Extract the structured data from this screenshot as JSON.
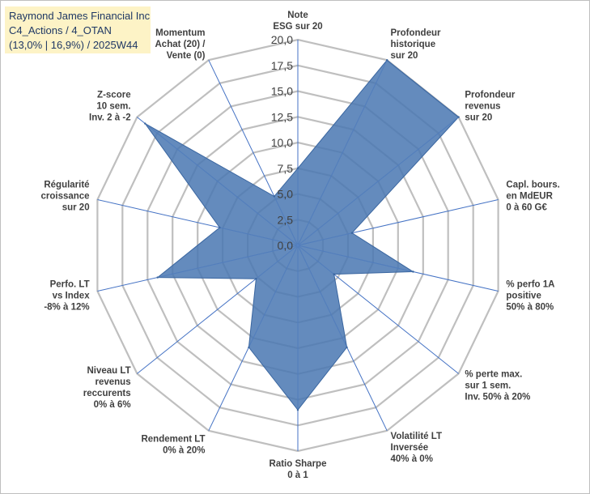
{
  "title_box": {
    "line1": "Raymond James Financial Inc",
    "line2": "C4_Actions / 4_OTAN",
    "line3": "(13,0% | 16,9%) / 2025W44",
    "background": "#fdf3c6",
    "text_color": "#1f3864"
  },
  "chart_data": {
    "type": "radar",
    "range": [
      0,
      20
    ],
    "ticks": [
      "0,0",
      "2,5",
      "5,0",
      "7,5",
      "10,0",
      "12,5",
      "15,0",
      "17,5",
      "20,0"
    ],
    "tick_values": [
      0,
      2.5,
      5,
      7.5,
      10,
      12.5,
      15,
      17.5,
      20
    ],
    "fill_color": "#4a78b2",
    "grid_color": "#bfbfbf",
    "spoke_color": "#4472c4",
    "axes": [
      {
        "lines": [
          "Note",
          "ESG sur 20"
        ],
        "value": 7.5
      },
      {
        "lines": [
          "Profondeur",
          "historique",
          "sur 20"
        ],
        "value": 20
      },
      {
        "lines": [
          "Profondeur",
          "revenus",
          "sur 20"
        ],
        "value": 20
      },
      {
        "lines": [
          "Capl. bours.",
          "en MdEUR",
          "0 à 60 G€"
        ],
        "value": 5.4
      },
      {
        "lines": [
          "% perfo 1A",
          "positive",
          "50% à 80%"
        ],
        "value": 11.5
      },
      {
        "lines": [
          "% perte max.",
          "sur 1 sem.",
          "Inv. 50% à 20%"
        ],
        "value": 4.5
      },
      {
        "lines": [
          "Volatilité LT",
          "Inversée",
          "40% à 0%"
        ],
        "value": 11.0
      },
      {
        "lines": [
          "Ratio Sharpe",
          "0 à 1"
        ],
        "value": 16.0
      },
      {
        "lines": [
          "Rendement LT",
          "0% à 20%"
        ],
        "value": 11.0
      },
      {
        "lines": [
          "Niveau LT",
          "revenus",
          "reccurents",
          "0% à 6%"
        ],
        "value": 5.2
      },
      {
        "lines": [
          "Perfo. LT",
          "vs Index",
          "-8% à 12%"
        ],
        "value": 14.0
      },
      {
        "lines": [
          "Régularité",
          "croissance",
          "sur 20"
        ],
        "value": 7.8
      },
      {
        "lines": [
          "Z-score",
          "10 sem.",
          "Inv. 2 à -2"
        ],
        "value": 19.0
      },
      {
        "lines": [
          "Momentum",
          "Achat (20) /",
          "Vente (0)"
        ],
        "value": 5.3
      }
    ]
  }
}
